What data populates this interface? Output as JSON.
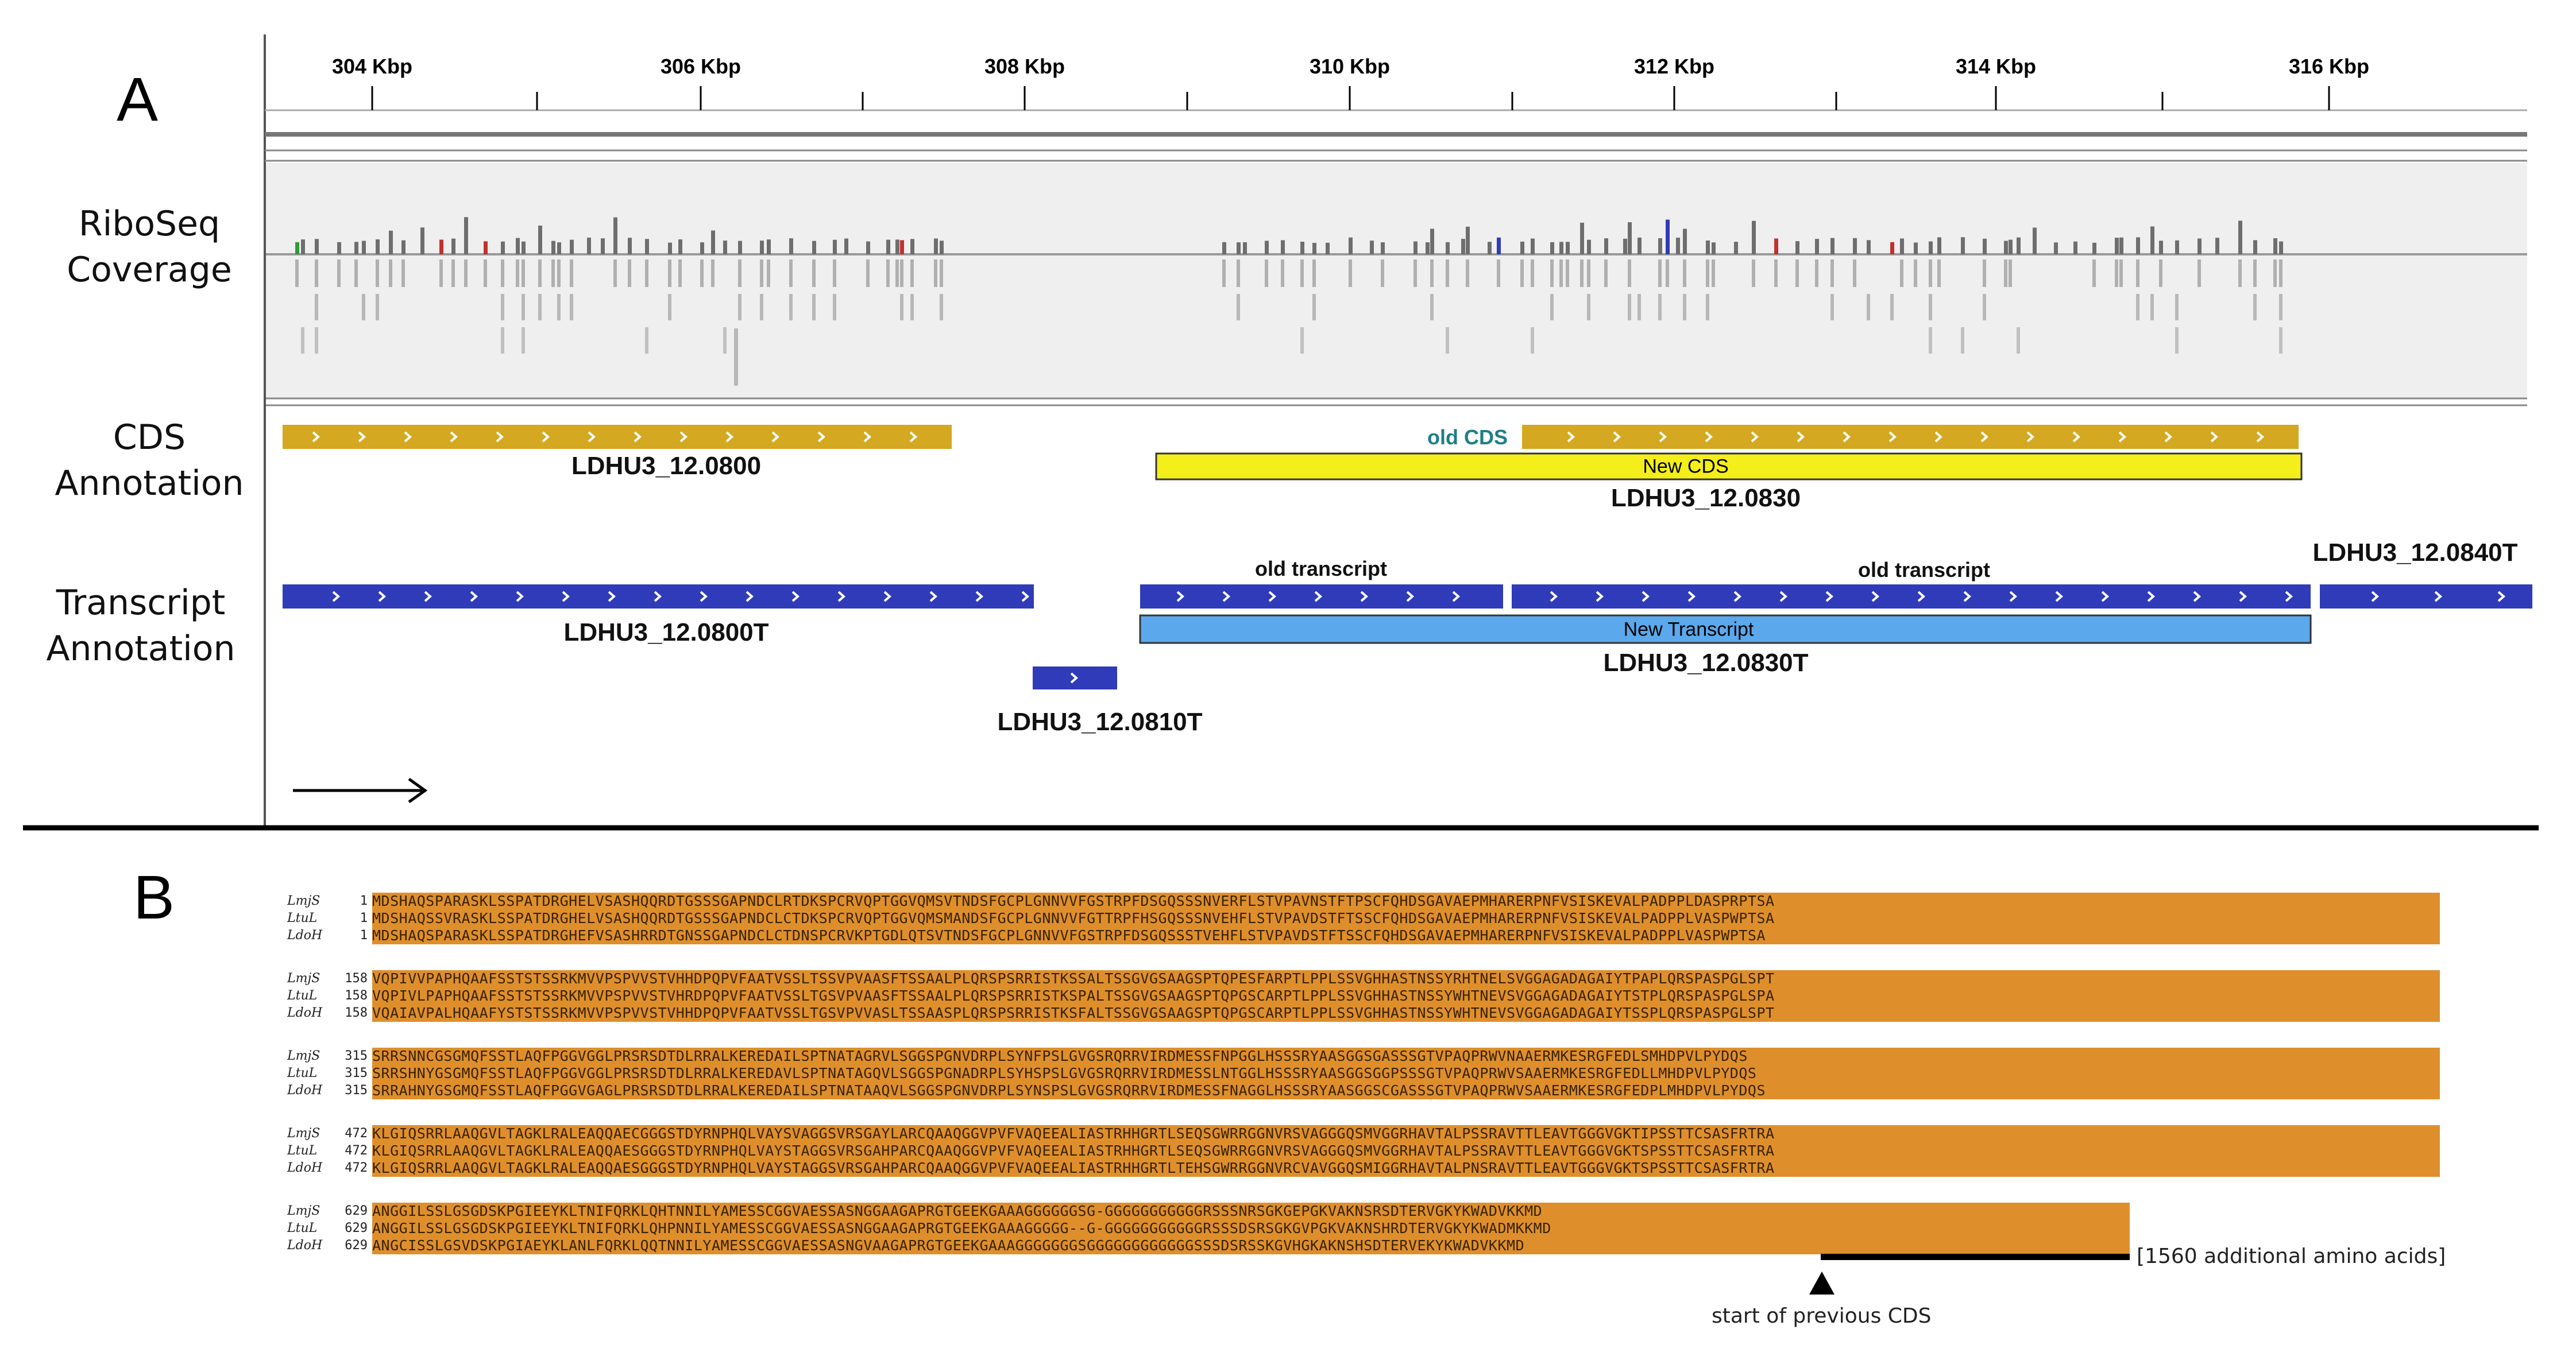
{
  "panel_a": {
    "letter": "A",
    "ruler": {
      "ticks": [
        "304 Kbp",
        "306 Kbp",
        "308 Kbp",
        "310 Kbp",
        "312 Kbp",
        "314 Kbp",
        "316 Kbp"
      ]
    },
    "tracks": {
      "riboseq_line1": "RiboSeq",
      "riboseq_line2": "Coverage",
      "cds_line1": "CDS",
      "cds_line2": "Annotation",
      "transcript_line1": "Transcript",
      "transcript_line2": "Annotation"
    },
    "cds": {
      "gene1": "LDHU3_12.0800",
      "old_label": "old CDS",
      "new_label": "New CDS",
      "gene2": "LDHU3_12.0830"
    },
    "transcripts": {
      "t0800": "LDHU3_12.0800T",
      "t0810": "LDHU3_12.0810T",
      "old1": "old transcript",
      "old2": "old transcript",
      "new_label": "New Transcript",
      "t0830": "LDHU3_12.0830T",
      "t0840": "LDHU3_12.0840T"
    },
    "colors": {
      "cds_old": "#d4a820",
      "cds_new": "#f4ee1a",
      "transcript_old": "#2f3bb8",
      "transcript_new": "#5ba8ec",
      "coverage": "#6e6e6e",
      "old_cds_text": "#1e7f86"
    }
  },
  "panel_b": {
    "letter": "B",
    "blocks": [
      {
        "start": "1",
        "rows": [
          {
            "name": "LmjS",
            "seq": "MDSHAQSPARASKLSSPATDRGHELVSASHQQRDTGSSSGAPNDCLRTDKSPCRVQPTGGVQMSVTNDSFGCPLGNNVVFGSTRPFDSGQSSSNVERFLSTVPAVNSTFTPSCFQHDSGAVAEPMHARERPNFVSISKEVALPADPPLDASPRPTSA"
          },
          {
            "name": "LtuL",
            "seq": "MDSHAQSSVRASKLSSPATDRGHELVSASHQQRDTGSSSGAPNDCLCTDKSPCRVQPTGGVQMSMANDSFGCPLGNNVVFGTTRPFHSGQSSSNVEHFLSTVPAVDSTFTSSCFQHDSGAVAEPMHARERPNFVSISKEVALPADPPLVASPWPTSA"
          },
          {
            "name": "LdoH",
            "seq": "MDSHAQSPARASKLSSPATDRGHEFVSASHRRDTGNSSGAPNDCLCTDNSPCRVKPTGDLQTSVTNDSFGCPLGNNVVFGSTRPFDSGQSSSTVEHFLSTVPAVDSTFTSSCFQHDSGAVAEPMHARERPNFVSISKEVALPADPPLVASPWPTSA"
          }
        ]
      },
      {
        "start": "158",
        "rows": [
          {
            "name": "LmjS",
            "seq": "VQPIVVPAPHQAAFSSTSTSSRKMVVPSPVVSTVHHDPQPVFAATVSSLTSSVPVAASFTSSAALPLQRSPSRRISTKSSALTSSGVGSAAGSPTQPESFARPTLPPLSSVGHHASTNSSYRHTNELSVGGAGADAGAIYTPAPLQRSPASPGLSPT"
          },
          {
            "name": "LtuL",
            "seq": "VQPIVLPAPHQAAFSSTSTSSRKMVVPSPVVSTVHRDPQPVFAATVSSLTGSVPVAASFTSSAALPLQRSPSRRISTKSPALTSSGVGSAAGSPTQPGSCARPTLPPLSSVGHHASTNSSYWHTNEVSVGGAGADAGAIYTSTPLQRSPASPGLSPA"
          },
          {
            "name": "LdoH",
            "seq": "VQAIAVPALHQAAFYSTSTSSRKMVVPSPVVSTVHHDPQPVFAATVSSLTGSVPVVASLTSSAASPLQRSPSRRISTKSFALTSSGVGSAAGSPTQPGSCARPTLPPLSSVGHHASTNSSYWHTNEVSVGGAGADAGAIYTSSPLQRSPASPGLSPT"
          }
        ]
      },
      {
        "start": "315",
        "rows": [
          {
            "name": "LmjS",
            "seq": "SRRSNNCGSGMQFSSTLAQFPGGVGGLPRSRSDTDLRRALKEREDAILSPTNATAGRVLSGGSPGNVDRPLSYNFPSLGVGSRQRRVIRDMESSFNPGGLHSSSRYAASGGSGASSSGTVPAQPRWVNAAERMKESRGFEDLSMHDPVLPYDQS"
          },
          {
            "name": "LtuL",
            "seq": "SRRSHNYGSGMQFSSTLAQFPGGVGGLPRSRSDTDLRRALKEREDAVLSPTNATAGQVLSGGSPGNADRPLSYHSPSLGVGSRQRRVIRDMESSLNTGGLHSSSRYAASGGSGGPSSSGTVPAQPRWVSAAERMKESRGFEDLLMHDPVLPYDQS"
          },
          {
            "name": "LdoH",
            "seq": "SRRAHNYGSGMQFSSTLAQFPGGVGAGLPRSRSDTDLRRALKEREDAILSPTNATAAQVLSGGSPGNVDRPLSYNSPSLGVGSRQRRVIRDMESSFNAGGLHSSSRYAASGGSCGASSSGTVPAQPRWVSAAERMKESRGFEDPLMHDPVLPYDQS"
          }
        ]
      },
      {
        "start": "472",
        "rows": [
          {
            "name": "LmjS",
            "seq": "KLGIQSRRLAAQGVLTAGKLRALEAQQAECGGGSTDYRNPHQLVAYSVAGGSVRSGAYLARCQAAQGGVPVFVAQEEALIASTRHHGRTLSEQSGWRRGGNVRSVAGGGQSMVGGRHAVTALPSSRAVTTLEAVTGGGVGKTIPSSTTCSASFRTRA"
          },
          {
            "name": "LtuL",
            "seq": "KLGIQSRRLAAQGVLTAGKLRALEAQQAESGGGSTDYRNPHQLVAYSTAGGSVRSGAHPARCQAAQGGVPVFVAQEEALIASTRHHGRTLSEQSGWRRGGNVRSVAGGGQSMVGGRHAVTALPSSRAVTTLEAVTGGGVGKTSPSSTTCSASFRTRA"
          },
          {
            "name": "LdoH",
            "seq": "KLGIQSRRLAAQGVLTAGKLRALEAQQAESGGGSTDYRNPHQLVAYSTAGGSVRSGAHPARCQAAQGGVPVFVAQEEALIASTRHHGRTLTEHSGWRRGGNVRCVAVGGQSMIGGRHAVTALPNSRAVTTLEAVTGGGVGKTSPSSTTCSASFRTRA"
          }
        ]
      },
      {
        "start": "629",
        "rows": [
          {
            "name": "LmjS",
            "seq": "ANGGILSSLGSGDSKPGIEEYKLTNIFQRKLQHTNNILYAMESSCGGVAESSASNGGAAGAPRGTGEEKGAAAGGGGGGSG-GGGGGGGGGGGRSSSNRSGKGEPGKVAKNSRSDTERVGKYKWADVKKMD"
          },
          {
            "name": "LtuL",
            "seq": "ANGGILSSLGSGDSKPGIEEYKLTNIFQRKLQHPNNILYAMESSCGGVAESSASNGGAAGAPRGTGEEKGAAAGGGGG--G-GGGGGGGGGGGRSSSDSRSGKGVPGKVAKNSHRDTERVGKYKWADMKKMD"
          },
          {
            "name": "LdoH",
            "seq": "ANGCISSLGSVDSKPGIAEYKLANLFQRKLQQTNNILYAMESSCGGVAESSASNGVAAGAPRGTGEEKGAAAGGGGGGGSGGGGGGGGGGGGSSSDSRSSKGVHGKAKNSHSDTERVEKYKWADVKKMD"
          }
        ]
      }
    ],
    "additional_note": "[1560 additional amino acids]",
    "start_note": "start of previous CDS"
  }
}
